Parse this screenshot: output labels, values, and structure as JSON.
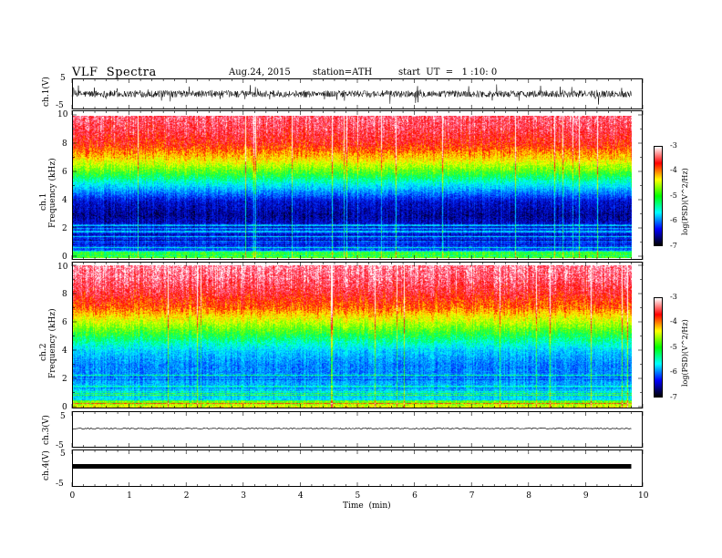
{
  "header": {
    "title": "VLF  Spectra",
    "date": "Aug.24, 2015",
    "station": "station=ATH",
    "start": "start  UT  =   1 :10: 0"
  },
  "colorbar": {
    "label": "log(PSD)(V^2/Hz)",
    "ticks": [
      "-3",
      "-4",
      "-5",
      "-6",
      "-7"
    ],
    "colors": [
      "#ffffff",
      "#ff0000",
      "#ffff00",
      "#00ff00",
      "#00ffff",
      "#0000ff",
      "#000000"
    ]
  },
  "chart_data": [
    {
      "type": "line",
      "name": "ch1-waveform",
      "ylabel": "ch.1(V)",
      "ylim": [
        -5,
        5
      ],
      "yticks": [
        "5",
        "-5"
      ],
      "xlim": [
        0,
        10
      ],
      "description_values": {
        "baseline": 0,
        "typical_amplitude": 1,
        "max_spike": 2.5
      }
    },
    {
      "type": "heatmap",
      "name": "ch1-spectrogram",
      "ylabel": "ch.1\nFrequency (kHz)",
      "ylabel_line1": "ch.1",
      "ylabel_line2": "Frequency  (kHz)",
      "ylim": [
        0,
        10
      ],
      "yticks": [
        "0",
        "2",
        "4",
        "6",
        "8",
        "10"
      ],
      "xlim": [
        0,
        9.8
      ],
      "zlim": [
        -7,
        -3
      ],
      "profile_logpsd": [
        [
          0,
          -5.8
        ],
        [
          1,
          -6.2
        ],
        [
          2,
          -6.3
        ],
        [
          3,
          -6.6
        ],
        [
          4,
          -6.4
        ],
        [
          5,
          -5.6
        ],
        [
          6,
          -4.8
        ],
        [
          7,
          -4.1
        ],
        [
          8,
          -3.6
        ],
        [
          9,
          -3.4
        ],
        [
          10,
          -3.3
        ]
      ]
    },
    {
      "type": "heatmap",
      "name": "ch2-spectrogram",
      "ylabel_line1": "ch.2",
      "ylabel_line2": "Frequency  (kHz)",
      "ylim": [
        0,
        10
      ],
      "yticks": [
        "0",
        "2",
        "4",
        "6",
        "8",
        "10"
      ],
      "xlim": [
        0,
        9.8
      ],
      "zlim": [
        -7,
        -3
      ],
      "profile_logpsd": [
        [
          0,
          -5.4
        ],
        [
          1,
          -5.6
        ],
        [
          2,
          -5.8
        ],
        [
          3,
          -5.9
        ],
        [
          4,
          -5.6
        ],
        [
          5,
          -5.0
        ],
        [
          6,
          -4.4
        ],
        [
          7,
          -3.8
        ],
        [
          8,
          -3.5
        ],
        [
          9,
          -3.3
        ],
        [
          10,
          -3.2
        ]
      ]
    },
    {
      "type": "line",
      "name": "ch3-waveform",
      "ylabel": "ch.3(V)",
      "ylim": [
        -5,
        5
      ],
      "yticks": [
        "5",
        "-5"
      ],
      "xlim": [
        0,
        10
      ],
      "description_values": {
        "baseline": 0
      }
    },
    {
      "type": "line",
      "name": "ch4-waveform",
      "ylabel": "ch.4(V)",
      "ylim": [
        -5,
        5
      ],
      "yticks": [
        "5",
        "-5"
      ],
      "xlim": [
        0,
        10
      ],
      "description_values": {
        "baseline": 0
      }
    }
  ],
  "xaxis": {
    "label": "Time  (min)",
    "ticks": [
      "0",
      "1",
      "2",
      "3",
      "4",
      "5",
      "6",
      "7",
      "8",
      "9",
      "10"
    ]
  }
}
